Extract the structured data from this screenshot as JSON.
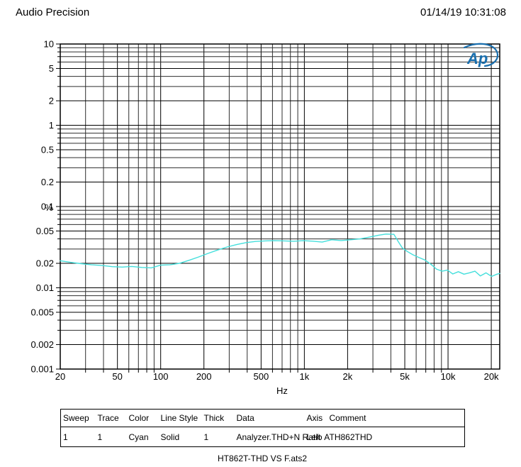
{
  "header": {
    "app_title": "Audio Precision",
    "timestamp": "01/14/19 10:31:08"
  },
  "logo": {
    "text": "Ap",
    "color": "#1a6fae"
  },
  "chart_data": {
    "type": "line",
    "title": "",
    "xlabel": "Hz",
    "ylabel": "%",
    "x_scale": "log",
    "y_scale": "log",
    "xlim": [
      20,
      22900
    ],
    "ylim": [
      0.001,
      10
    ],
    "grid": "log-decade-with-minors",
    "legend_position": "table-below",
    "x_ticks": [
      {
        "value": 20,
        "label": "20"
      },
      {
        "value": 50,
        "label": "50"
      },
      {
        "value": 100,
        "label": "100"
      },
      {
        "value": 200,
        "label": "200"
      },
      {
        "value": 500,
        "label": "500"
      },
      {
        "value": 1000,
        "label": "1k"
      },
      {
        "value": 2000,
        "label": "2k"
      },
      {
        "value": 5000,
        "label": "5k"
      },
      {
        "value": 10000,
        "label": "10k"
      },
      {
        "value": 20000,
        "label": "20k"
      }
    ],
    "y_ticks": [
      {
        "value": 10,
        "label": "10"
      },
      {
        "value": 5,
        "label": "5"
      },
      {
        "value": 2,
        "label": "2"
      },
      {
        "value": 1,
        "label": "1"
      },
      {
        "value": 0.5,
        "label": "0.5"
      },
      {
        "value": 0.2,
        "label": "0.2"
      },
      {
        "value": 0.1,
        "label": "0.1"
      },
      {
        "value": 0.05,
        "label": "0.05"
      },
      {
        "value": 0.02,
        "label": "0.02"
      },
      {
        "value": 0.01,
        "label": "0.01"
      },
      {
        "value": 0.005,
        "label": "0.005"
      },
      {
        "value": 0.002,
        "label": "0.002"
      },
      {
        "value": 0.001,
        "label": "0.001"
      }
    ],
    "series": [
      {
        "name": "Analyzer.THD+N Ratio A",
        "color_name": "Cyan",
        "color": "#45dfdc",
        "line_style": "solid",
        "thickness": 1,
        "axis": "Left",
        "comment": "TH862THD",
        "points": [
          [
            20,
            0.0215
          ],
          [
            24,
            0.0205
          ],
          [
            28,
            0.0198
          ],
          [
            33,
            0.0192
          ],
          [
            39,
            0.0188
          ],
          [
            46,
            0.0182
          ],
          [
            54,
            0.018
          ],
          [
            63,
            0.0183
          ],
          [
            74,
            0.0178
          ],
          [
            86,
            0.0176
          ],
          [
            100,
            0.019
          ],
          [
            116,
            0.0192
          ],
          [
            135,
            0.02
          ],
          [
            158,
            0.0218
          ],
          [
            184,
            0.024
          ],
          [
            214,
            0.0265
          ],
          [
            250,
            0.0292
          ],
          [
            290,
            0.0318
          ],
          [
            338,
            0.034
          ],
          [
            394,
            0.036
          ],
          [
            458,
            0.0372
          ],
          [
            534,
            0.0378
          ],
          [
            622,
            0.038
          ],
          [
            724,
            0.0378
          ],
          [
            843,
            0.0374
          ],
          [
            982,
            0.038
          ],
          [
            1140,
            0.0375
          ],
          [
            1330,
            0.0365
          ],
          [
            1550,
            0.039
          ],
          [
            1800,
            0.0382
          ],
          [
            2100,
            0.039
          ],
          [
            2440,
            0.04
          ],
          [
            2840,
            0.042
          ],
          [
            3310,
            0.0445
          ],
          [
            3700,
            0.0458
          ],
          [
            4200,
            0.0455
          ],
          [
            4500,
            0.037
          ],
          [
            4800,
            0.031
          ],
          [
            5200,
            0.028
          ],
          [
            5700,
            0.0255
          ],
          [
            6300,
            0.0235
          ],
          [
            6900,
            0.022
          ],
          [
            7600,
            0.0195
          ],
          [
            8300,
            0.017
          ],
          [
            9100,
            0.016
          ],
          [
            9900,
            0.0165
          ],
          [
            10800,
            0.0148
          ],
          [
            11800,
            0.0158
          ],
          [
            12900,
            0.0147
          ],
          [
            14100,
            0.0153
          ],
          [
            15400,
            0.016
          ],
          [
            16800,
            0.014
          ],
          [
            18400,
            0.0153
          ],
          [
            20100,
            0.0138
          ],
          [
            21900,
            0.0147
          ],
          [
            22900,
            0.015
          ]
        ]
      }
    ]
  },
  "table": {
    "headers": [
      "Sweep",
      "Trace",
      "Color",
      "Line Style",
      "Thick",
      "Data",
      "Axis",
      "Comment"
    ],
    "rows": [
      [
        "1",
        "1",
        "Cyan",
        "Solid",
        "1",
        "Analyzer.THD+N Ratio A",
        "Left",
        "TH862THD"
      ]
    ]
  },
  "caption": "HT862T-THD VS F.ats2"
}
